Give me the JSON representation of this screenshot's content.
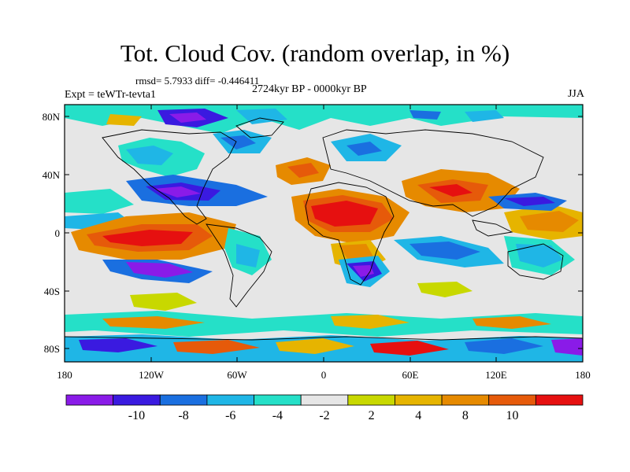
{
  "header": {
    "title": "Tot. Cloud Cov. (random overlap, in %)",
    "stats": "rmsd= 5.7933 diff= -0.446411",
    "experiment": "Expt = teWTr-tevta1",
    "period": "2724kyr BP - 0000kyr BP",
    "season": "JJA"
  },
  "map": {
    "lat_ticks": [
      "80N",
      "40N",
      "0",
      "40S",
      "80S"
    ],
    "lon_ticks": [
      "180",
      "120W",
      "60W",
      "0",
      "60E",
      "120E",
      "180"
    ]
  },
  "colorbar": {
    "colors": [
      "#8a1be8",
      "#3a1ae0",
      "#1a6fe0",
      "#1fb6e6",
      "#25e0c8",
      "#e6e6e6",
      "#c8d800",
      "#e6b400",
      "#e68a00",
      "#e65a0a",
      "#e61010"
    ],
    "labels": [
      "-10",
      "-8",
      "-6",
      "-4",
      "-2",
      "2",
      "4",
      "8",
      "10"
    ]
  }
}
